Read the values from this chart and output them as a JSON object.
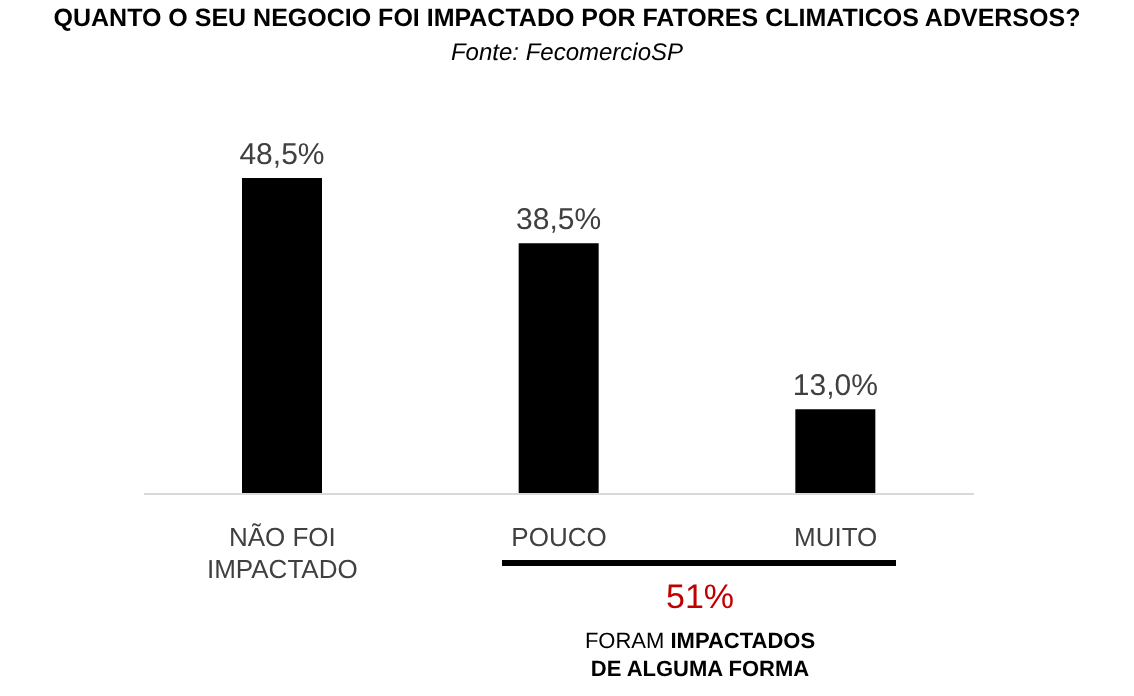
{
  "chart_data": {
    "type": "bar",
    "title": "QUANTO O SEU NEGOCIO FOI IMPACTADO POR FATORES CLIMATICOS ADVERSOS?",
    "subtitle": "Fonte: FecomercioSP",
    "categories": [
      "NÃO FOI IMPACTADO",
      "POUCO",
      "MUITO"
    ],
    "values": [
      48.5,
      38.5,
      13.0
    ],
    "color": "#000000",
    "tick_labels": "x",
    "value_labels": [
      "48,5%",
      "38,5%",
      "13,0%"
    ],
    "annotations": [
      "51%",
      "FORAM",
      "IMPACTADOS",
      "DE ALGUMA FORMA"
    ]
  }
}
